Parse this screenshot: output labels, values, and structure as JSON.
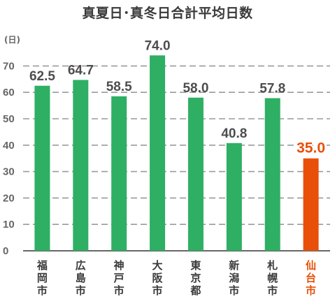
{
  "chart_data": {
    "type": "bar",
    "title": "真夏日･真冬日合計平均日数",
    "ylabel": "(日)",
    "xlabel": "",
    "ylim": [
      0,
      75
    ],
    "yticks": [
      0,
      10,
      20,
      30,
      40,
      50,
      60,
      70
    ],
    "grid": true,
    "categories": [
      "福岡市",
      "広島市",
      "神戸市",
      "大阪市",
      "東京都",
      "新潟市",
      "札幌市",
      "仙台市"
    ],
    "values": [
      62.5,
      64.7,
      58.5,
      74.0,
      58.0,
      40.8,
      57.8,
      35.0
    ],
    "value_labels": [
      "62.5",
      "64.7",
      "58.5",
      "74.0",
      "58.0",
      "40.8",
      "57.8",
      "35.0"
    ],
    "highlight_index": 7,
    "colors": {
      "bar": "#2eaf63",
      "highlight": "#e8500a",
      "grid": "#9a9a9a",
      "axis": "#666666"
    }
  }
}
